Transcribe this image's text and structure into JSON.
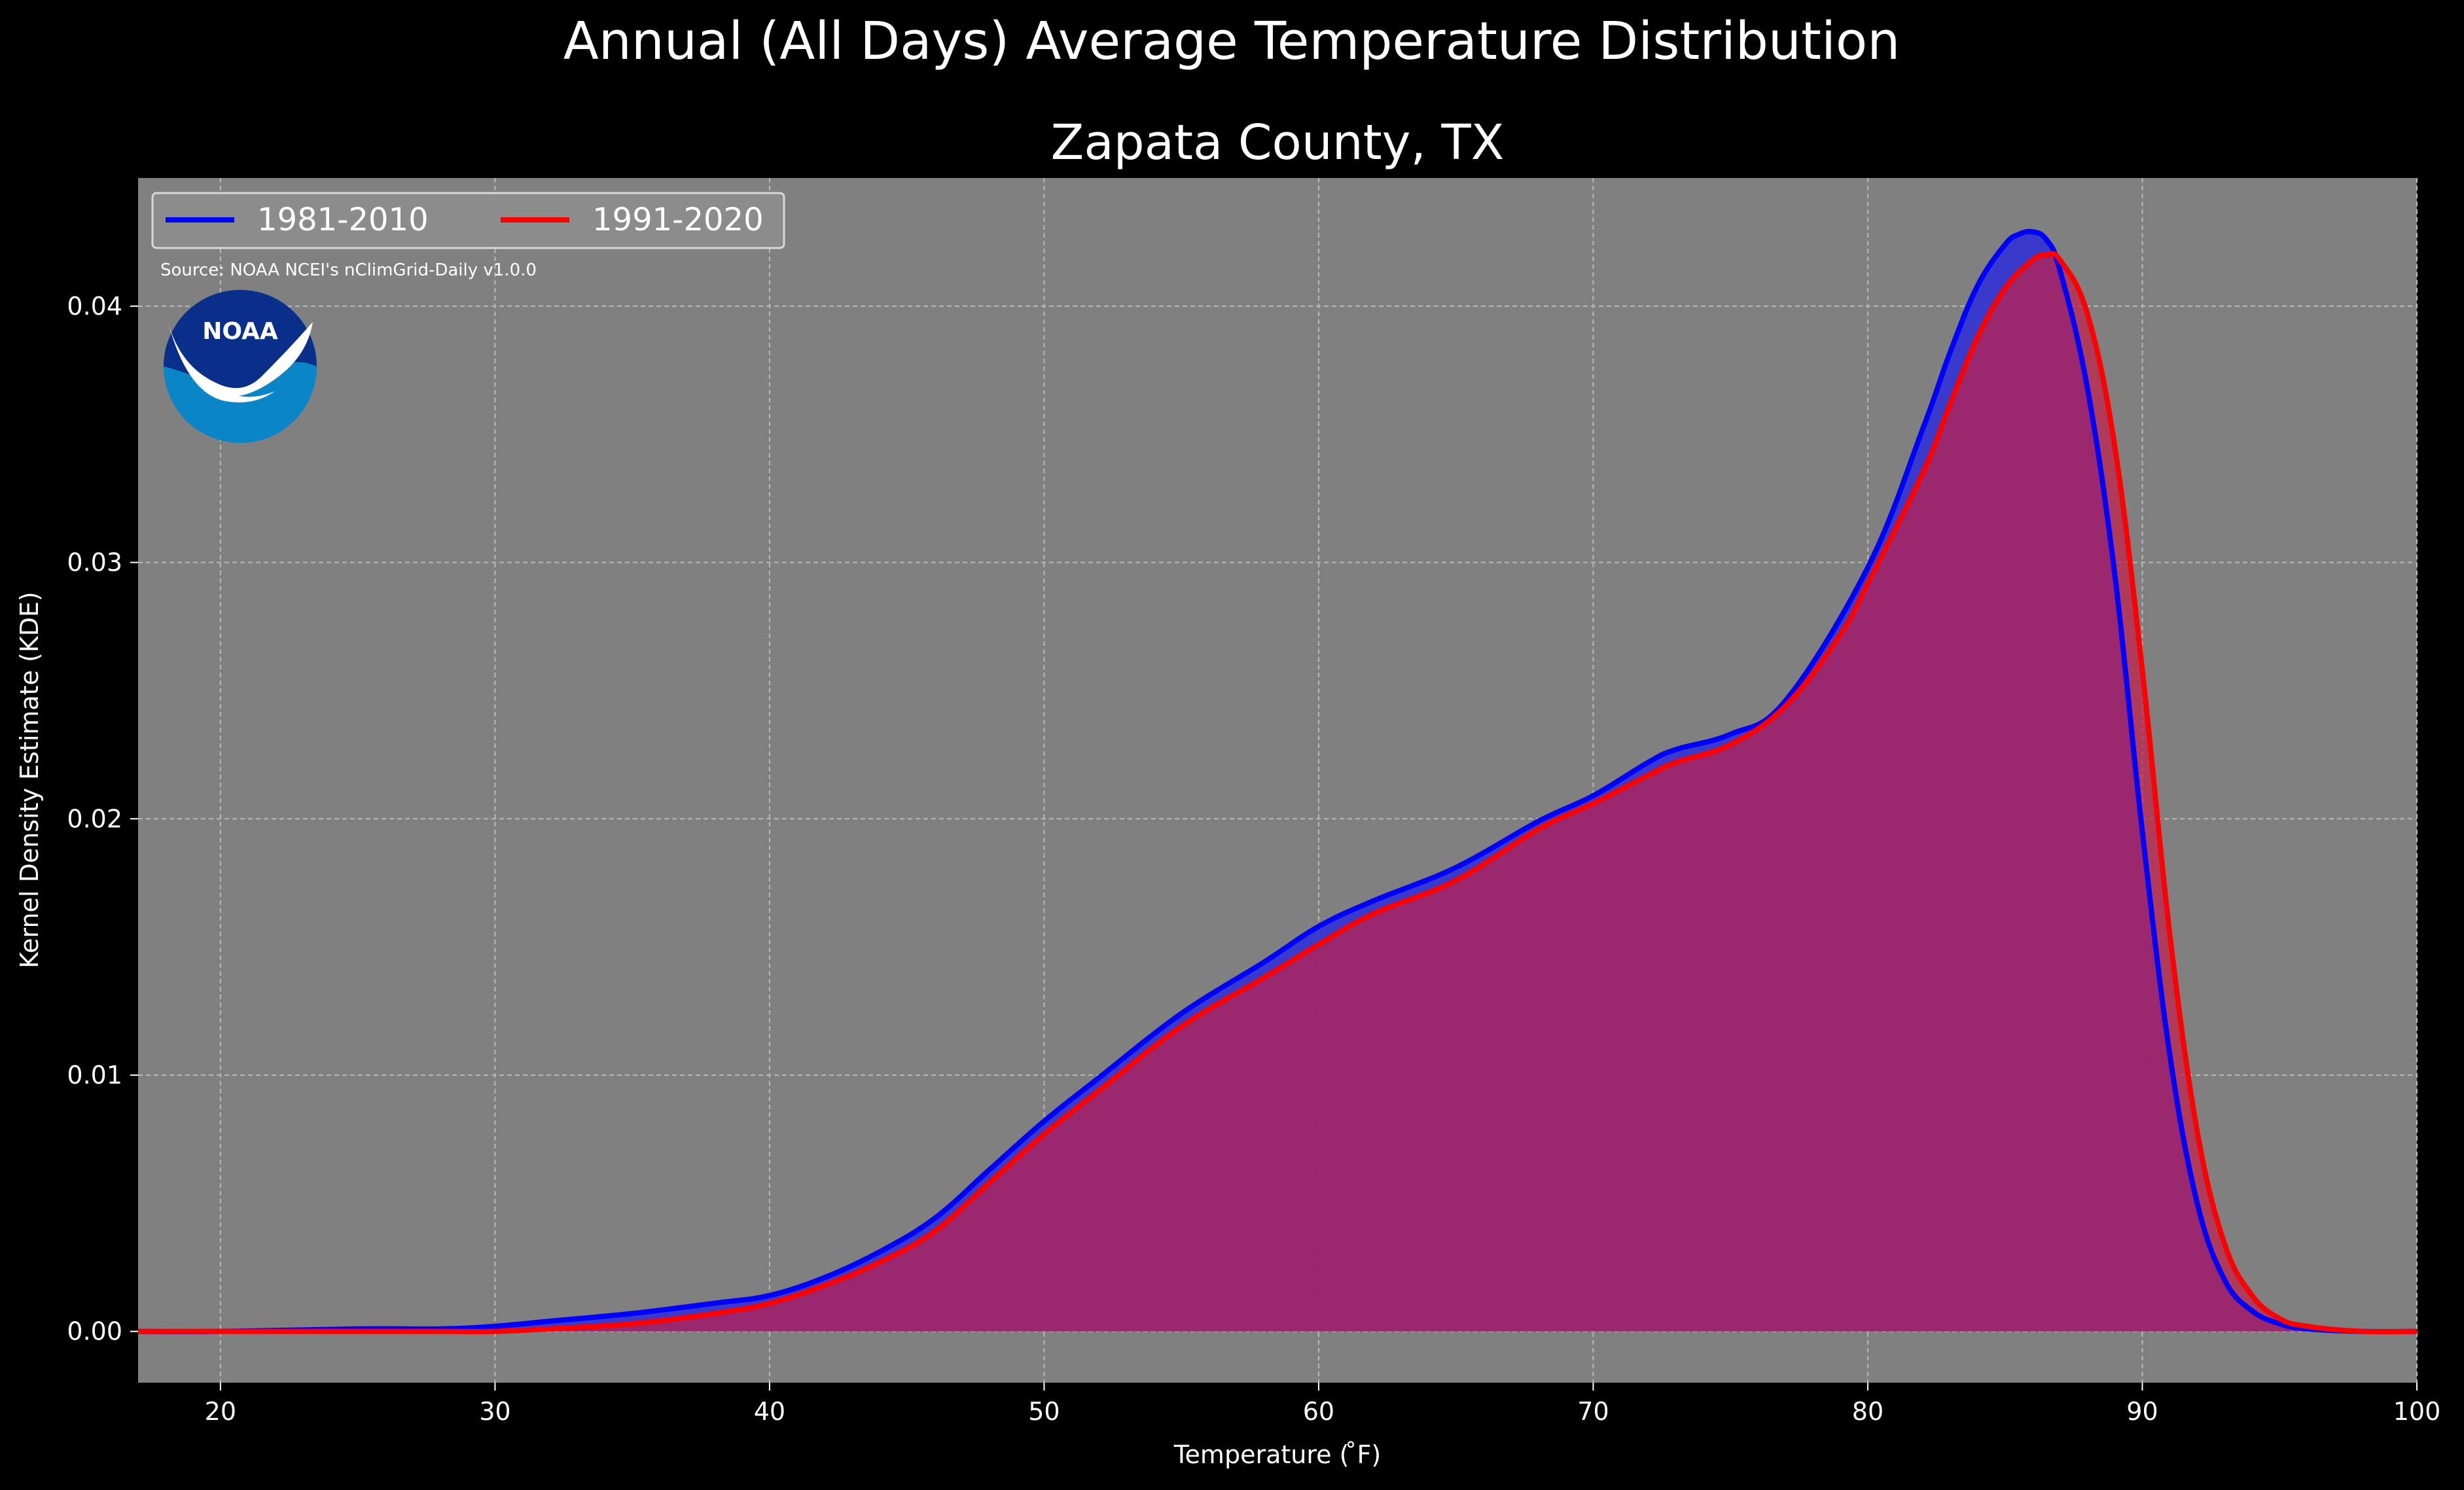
{
  "chart_data": {
    "type": "area",
    "title": "Annual (All Days) Average Temperature Distribution",
    "subtitle": "Zapata County, TX",
    "xlabel": "Temperature ($^\\circ$F)",
    "xlabel_display": "Temperature ( ̊F)",
    "ylabel": "Kernel Density Estimate (KDE)",
    "source": "Source: NOAA NCEI's nClimGrid-Daily v1.0.0",
    "logo_text": "NOAA",
    "xlim": [
      17,
      100
    ],
    "ylim": [
      -0.002,
      0.045
    ],
    "grid": true,
    "legend_position": "upper left",
    "xticks": [
      20,
      30,
      40,
      50,
      60,
      70,
      80,
      90,
      100
    ],
    "xtick_labels": [
      "20",
      "30",
      "40",
      "50",
      "60",
      "70",
      "80",
      "90",
      "100"
    ],
    "yticks": [
      0.0,
      0.01,
      0.02,
      0.03,
      0.04
    ],
    "ytick_labels": [
      "0.00",
      "0.01",
      "0.02",
      "0.03",
      "0.04"
    ],
    "colors": {
      "background": "#000000",
      "plot_background": "#808080",
      "grid": "#b8b8b8",
      "series_1981": "#0000ff",
      "series_1991": "#ff0000",
      "fill_1981": "#2d2dd8",
      "fill_1991": "#c0204a",
      "overlap_fill": "#9e1f5c",
      "noaa_dark": "#0a2f8a",
      "noaa_light": "#0a86c8"
    },
    "series": [
      {
        "name": "1981-2010",
        "color": "#0000ff",
        "x": [
          17,
          20,
          25,
          28,
          30,
          32,
          35,
          38,
          40,
          42,
          44,
          46,
          48,
          50,
          52,
          55,
          58,
          60,
          62,
          65,
          68,
          70,
          72,
          73,
          75,
          77,
          80,
          82,
          83,
          84,
          85,
          85.5,
          86,
          86.5,
          87,
          88,
          89,
          90,
          91,
          92,
          93,
          94,
          95,
          96,
          98,
          100
        ],
        "values": [
          0.0,
          0.0,
          0.0001,
          0.0001,
          0.0002,
          0.0004,
          0.0007,
          0.0011,
          0.0014,
          0.0021,
          0.0031,
          0.0044,
          0.0063,
          0.0082,
          0.0099,
          0.0124,
          0.0144,
          0.0158,
          0.0168,
          0.0181,
          0.0199,
          0.0209,
          0.0222,
          0.0227,
          0.0233,
          0.0246,
          0.0298,
          0.0352,
          0.0382,
          0.0408,
          0.0424,
          0.0428,
          0.0429,
          0.0426,
          0.0414,
          0.0368,
          0.0295,
          0.0195,
          0.0108,
          0.005,
          0.002,
          0.0008,
          0.0003,
          0.0001,
          0.0,
          0.0
        ]
      },
      {
        "name": "1991-2020",
        "color": "#ff0000",
        "x": [
          17,
          20,
          25,
          28,
          30,
          32,
          35,
          38,
          40,
          42,
          44,
          46,
          48,
          50,
          52,
          55,
          58,
          60,
          62,
          65,
          68,
          70,
          72,
          73,
          75,
          77,
          79,
          80,
          82,
          83,
          84,
          85,
          86,
          86.5,
          87,
          88,
          89,
          90,
          91,
          92,
          93,
          94,
          95,
          96,
          98,
          100
        ],
        "values": [
          0.0,
          0.0,
          0.0,
          0.0,
          0.0,
          0.0001,
          0.0003,
          0.0007,
          0.0011,
          0.0018,
          0.0027,
          0.0039,
          0.0058,
          0.0077,
          0.0094,
          0.0119,
          0.0138,
          0.0151,
          0.0163,
          0.0176,
          0.0196,
          0.0206,
          0.0217,
          0.0222,
          0.0229,
          0.0244,
          0.0272,
          0.0292,
          0.0335,
          0.0362,
          0.0388,
          0.0407,
          0.0418,
          0.042,
          0.0418,
          0.0397,
          0.0345,
          0.0258,
          0.0155,
          0.0078,
          0.0034,
          0.0014,
          0.0005,
          0.0002,
          0.0,
          0.0
        ]
      }
    ]
  }
}
